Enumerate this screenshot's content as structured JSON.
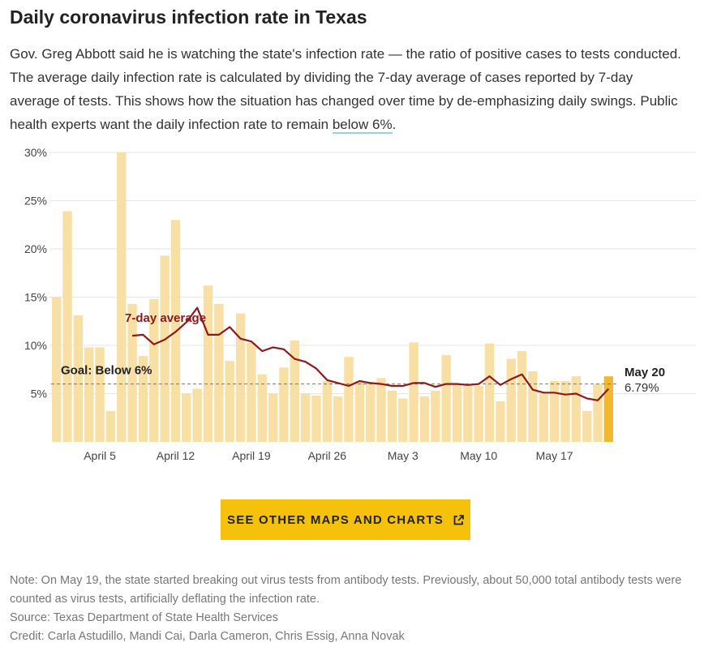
{
  "header": {
    "title": "Daily coronavirus infection rate in Texas",
    "description_main": "Gov. Greg Abbott said he is watching the state's infection rate — the ratio of positive cases to tests conducted. The average daily infection rate is calculated by dividing the 7-day average of cases reported by 7-day average of tests. This shows how the situation has changed over time by de-emphasizing daily swings. Public health experts want the daily infection rate to remain ",
    "description_link": "below 6%",
    "description_end": "."
  },
  "cta": {
    "label": "SEE OTHER MAPS AND CHARTS",
    "icon": "external-link-icon"
  },
  "footer": {
    "note": "Note: On May 19, the state started breaking out virus tests from antibody tests. Previously, about 50,000 total antibody tests were counted as virus tests, artificially deflating the infection rate.",
    "source": "Source: Texas Department of State Health Services",
    "credit": "Credit: Carla Astudillo, Mandi Cai, Darla Cameron, Chris Essig, Anna Novak"
  },
  "colors": {
    "bar": "#f7dfa6",
    "bar_highlight": "#f4b82f",
    "line": "#8b1a1a",
    "goal_line": "#777777",
    "grid": "#e6e6e6",
    "cta_background": "#f5c10b"
  },
  "chart_data": {
    "type": "bar",
    "x_tick_labels": [
      "April 5",
      "April 12",
      "April 19",
      "April 26",
      "May 3",
      "May 10",
      "May 17"
    ],
    "y_tick_labels": [
      "5%",
      "10%",
      "15%",
      "20%",
      "25%",
      "30%"
    ],
    "y_ticks": [
      5,
      10,
      15,
      20,
      25,
      30
    ],
    "ylim": [
      0,
      30
    ],
    "grid": true,
    "bar_values": [
      15.0,
      23.9,
      13.1,
      9.8,
      9.8,
      3.2,
      30.0,
      14.3,
      8.9,
      14.8,
      19.3,
      23.0,
      5.0,
      5.5,
      16.2,
      14.3,
      8.4,
      13.3,
      10.3,
      7.0,
      5.0,
      7.7,
      10.5,
      5.0,
      4.8,
      6.3,
      4.7,
      8.8,
      6.3,
      6.0,
      6.6,
      5.3,
      4.5,
      10.3,
      4.7,
      5.3,
      9.0,
      6.0,
      6.0,
      5.8,
      10.2,
      4.2,
      8.6,
      9.4,
      7.3,
      5.0,
      6.3,
      6.3,
      6.8,
      3.2,
      6.0,
      6.79
    ],
    "series": [
      {
        "name": "7-day average",
        "values": [
          null,
          null,
          null,
          null,
          null,
          null,
          null,
          11.0,
          11.1,
          10.1,
          10.6,
          11.4,
          12.4,
          13.9,
          11.1,
          11.1,
          11.9,
          10.7,
          10.4,
          9.4,
          9.8,
          9.6,
          8.6,
          8.3,
          7.6,
          6.4,
          6.1,
          5.8,
          6.3,
          6.1,
          6.0,
          5.8,
          5.8,
          6.1,
          6.1,
          5.7,
          6.0,
          6.0,
          5.9,
          6.0,
          6.8,
          5.9,
          6.5,
          7.0,
          5.4,
          5.1,
          5.1,
          4.9,
          5.0,
          4.5,
          4.3,
          5.5
        ]
      }
    ],
    "goal": {
      "value": 6,
      "label": "Goal: Below 6%"
    },
    "annotations": {
      "series_label": "7-day average",
      "last_date": "May 20",
      "last_value": "6.79%"
    }
  }
}
